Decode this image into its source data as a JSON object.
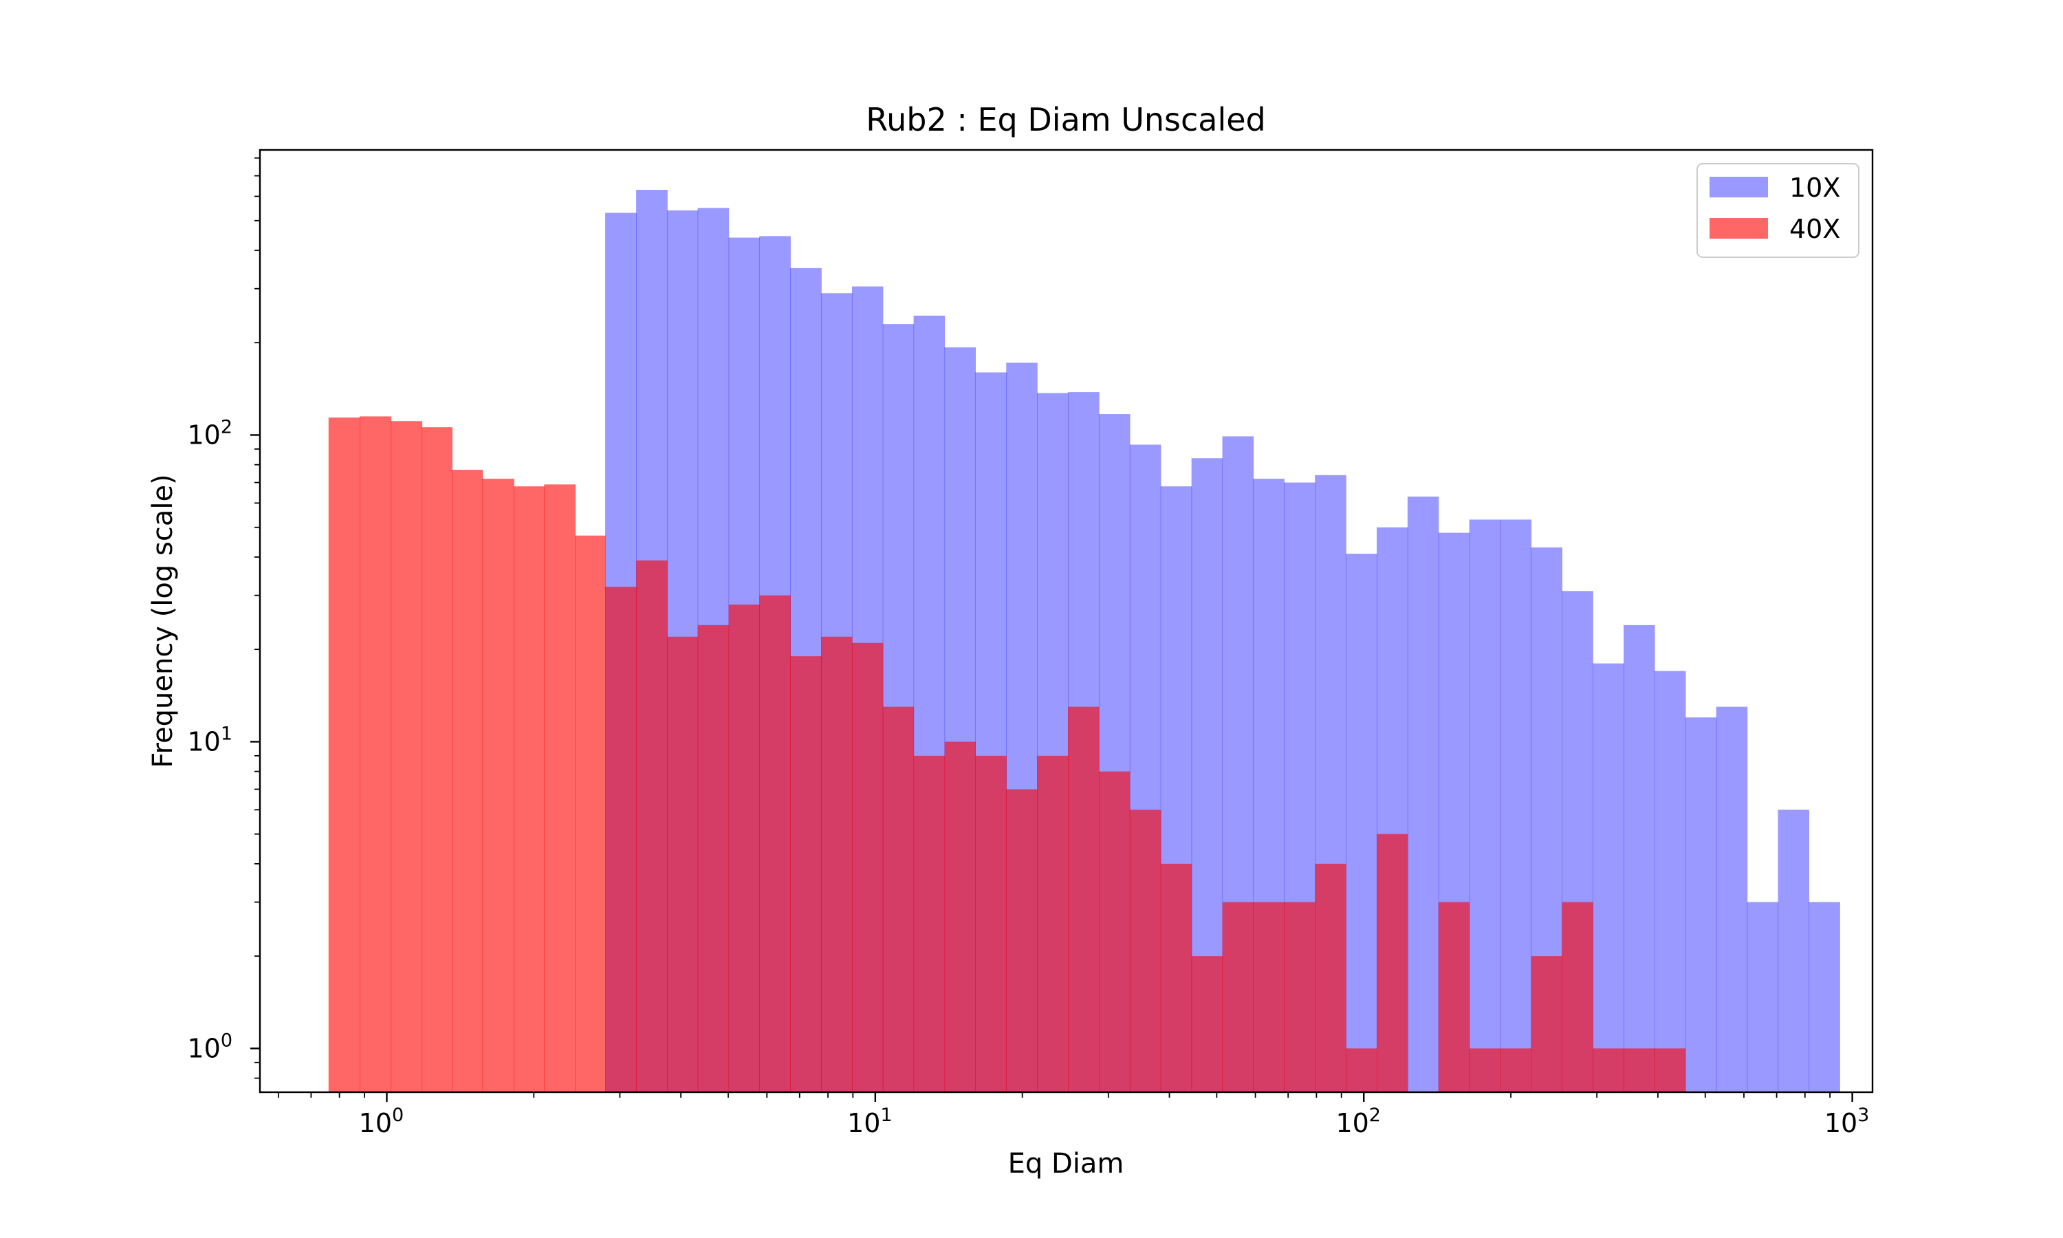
{
  "chart_data": {
    "type": "histogram",
    "title": "Rub2 : Eq Diam Unscaled",
    "xlabel": "Eq Diam",
    "ylabel": "Frequency (log scale)",
    "xscale": "log",
    "yscale": "log",
    "xlim": [
      0.55,
      1100
    ],
    "ylim": [
      0.72,
      850
    ],
    "x_ticks": [
      {
        "base": "10",
        "exp": "0",
        "value": 1
      },
      {
        "base": "10",
        "exp": "1",
        "value": 10
      },
      {
        "base": "10",
        "exp": "2",
        "value": 100
      },
      {
        "base": "10",
        "exp": "3",
        "value": 1000
      }
    ],
    "y_ticks": [
      {
        "base": "10",
        "exp": "0",
        "value": 1
      },
      {
        "base": "10",
        "exp": "1",
        "value": 10
      },
      {
        "base": "10",
        "exp": "2",
        "value": 100
      }
    ],
    "legend_position": "top-right",
    "grid": false,
    "series": [
      {
        "name": "10X",
        "color": "#0000ff",
        "opacity": 0.4,
        "bins": [
          [
            2.8,
            3.24,
            530
          ],
          [
            3.24,
            3.75,
            630
          ],
          [
            3.75,
            4.33,
            540
          ],
          [
            4.33,
            5.01,
            550
          ],
          [
            5.01,
            5.79,
            440
          ],
          [
            5.79,
            6.7,
            445
          ],
          [
            6.7,
            7.75,
            350
          ],
          [
            7.75,
            8.96,
            290
          ],
          [
            8.96,
            10.36,
            305
          ],
          [
            10.36,
            11.98,
            230
          ],
          [
            11.98,
            13.86,
            245
          ],
          [
            13.86,
            16.03,
            193
          ],
          [
            16.03,
            18.54,
            160
          ],
          [
            18.54,
            21.44,
            172
          ],
          [
            21.44,
            24.8,
            137
          ],
          [
            24.8,
            28.69,
            138
          ],
          [
            28.69,
            33.18,
            117
          ],
          [
            33.18,
            38.38,
            93
          ],
          [
            38.38,
            44.39,
            68
          ],
          [
            44.39,
            51.34,
            84
          ],
          [
            51.34,
            59.38,
            99
          ],
          [
            59.38,
            68.68,
            72
          ],
          [
            68.68,
            79.44,
            70
          ],
          [
            79.44,
            91.88,
            74
          ],
          [
            91.88,
            106.27,
            41
          ],
          [
            106.27,
            122.91,
            50
          ],
          [
            122.91,
            142.16,
            63
          ],
          [
            142.16,
            164.43,
            48
          ],
          [
            164.43,
            190.18,
            53
          ],
          [
            190.18,
            219.96,
            53
          ],
          [
            219.96,
            254.41,
            43
          ],
          [
            254.41,
            294.26,
            31
          ],
          [
            294.26,
            340.34,
            18
          ],
          [
            340.34,
            393.64,
            24
          ],
          [
            393.64,
            455.29,
            17
          ],
          [
            455.29,
            526.59,
            12
          ],
          [
            526.59,
            609.06,
            13
          ],
          [
            609.06,
            704.44,
            3
          ],
          [
            704.44,
            814.76,
            6
          ],
          [
            814.76,
            942.36,
            3
          ]
        ]
      },
      {
        "name": "40X",
        "color": "#ff0000",
        "opacity": 0.6,
        "bins": [
          [
            0.76,
            0.88,
            114
          ],
          [
            0.88,
            1.02,
            115
          ],
          [
            1.02,
            1.18,
            111
          ],
          [
            1.18,
            1.36,
            106
          ],
          [
            1.36,
            1.57,
            77
          ],
          [
            1.57,
            1.82,
            72
          ],
          [
            1.82,
            2.1,
            68
          ],
          [
            2.1,
            2.43,
            69
          ],
          [
            2.43,
            2.8,
            47
          ],
          [
            2.8,
            3.24,
            32
          ],
          [
            3.24,
            3.75,
            39
          ],
          [
            3.75,
            4.33,
            22
          ],
          [
            4.33,
            5.01,
            24
          ],
          [
            5.01,
            5.79,
            28
          ],
          [
            5.79,
            6.7,
            30
          ],
          [
            6.7,
            7.75,
            19
          ],
          [
            7.75,
            8.96,
            22
          ],
          [
            8.96,
            10.36,
            21
          ],
          [
            10.36,
            11.98,
            13
          ],
          [
            11.98,
            13.86,
            9
          ],
          [
            13.86,
            16.03,
            10
          ],
          [
            16.03,
            18.54,
            9
          ],
          [
            18.54,
            21.44,
            7
          ],
          [
            21.44,
            24.8,
            9
          ],
          [
            24.8,
            28.69,
            13
          ],
          [
            28.69,
            33.18,
            8
          ],
          [
            33.18,
            38.38,
            6
          ],
          [
            38.38,
            44.39,
            4
          ],
          [
            44.39,
            51.34,
            2
          ],
          [
            51.34,
            59.38,
            3
          ],
          [
            59.38,
            68.68,
            3
          ],
          [
            68.68,
            79.44,
            3
          ],
          [
            79.44,
            91.88,
            4
          ],
          [
            91.88,
            106.27,
            1
          ],
          [
            106.27,
            122.91,
            5
          ],
          [
            142.16,
            164.43,
            3
          ],
          [
            164.43,
            190.18,
            1
          ],
          [
            190.18,
            219.96,
            1
          ],
          [
            219.96,
            254.41,
            2
          ],
          [
            254.41,
            294.26,
            3
          ],
          [
            294.26,
            340.34,
            1
          ],
          [
            340.34,
            393.64,
            1
          ],
          [
            393.64,
            455.29,
            1
          ]
        ]
      }
    ]
  }
}
